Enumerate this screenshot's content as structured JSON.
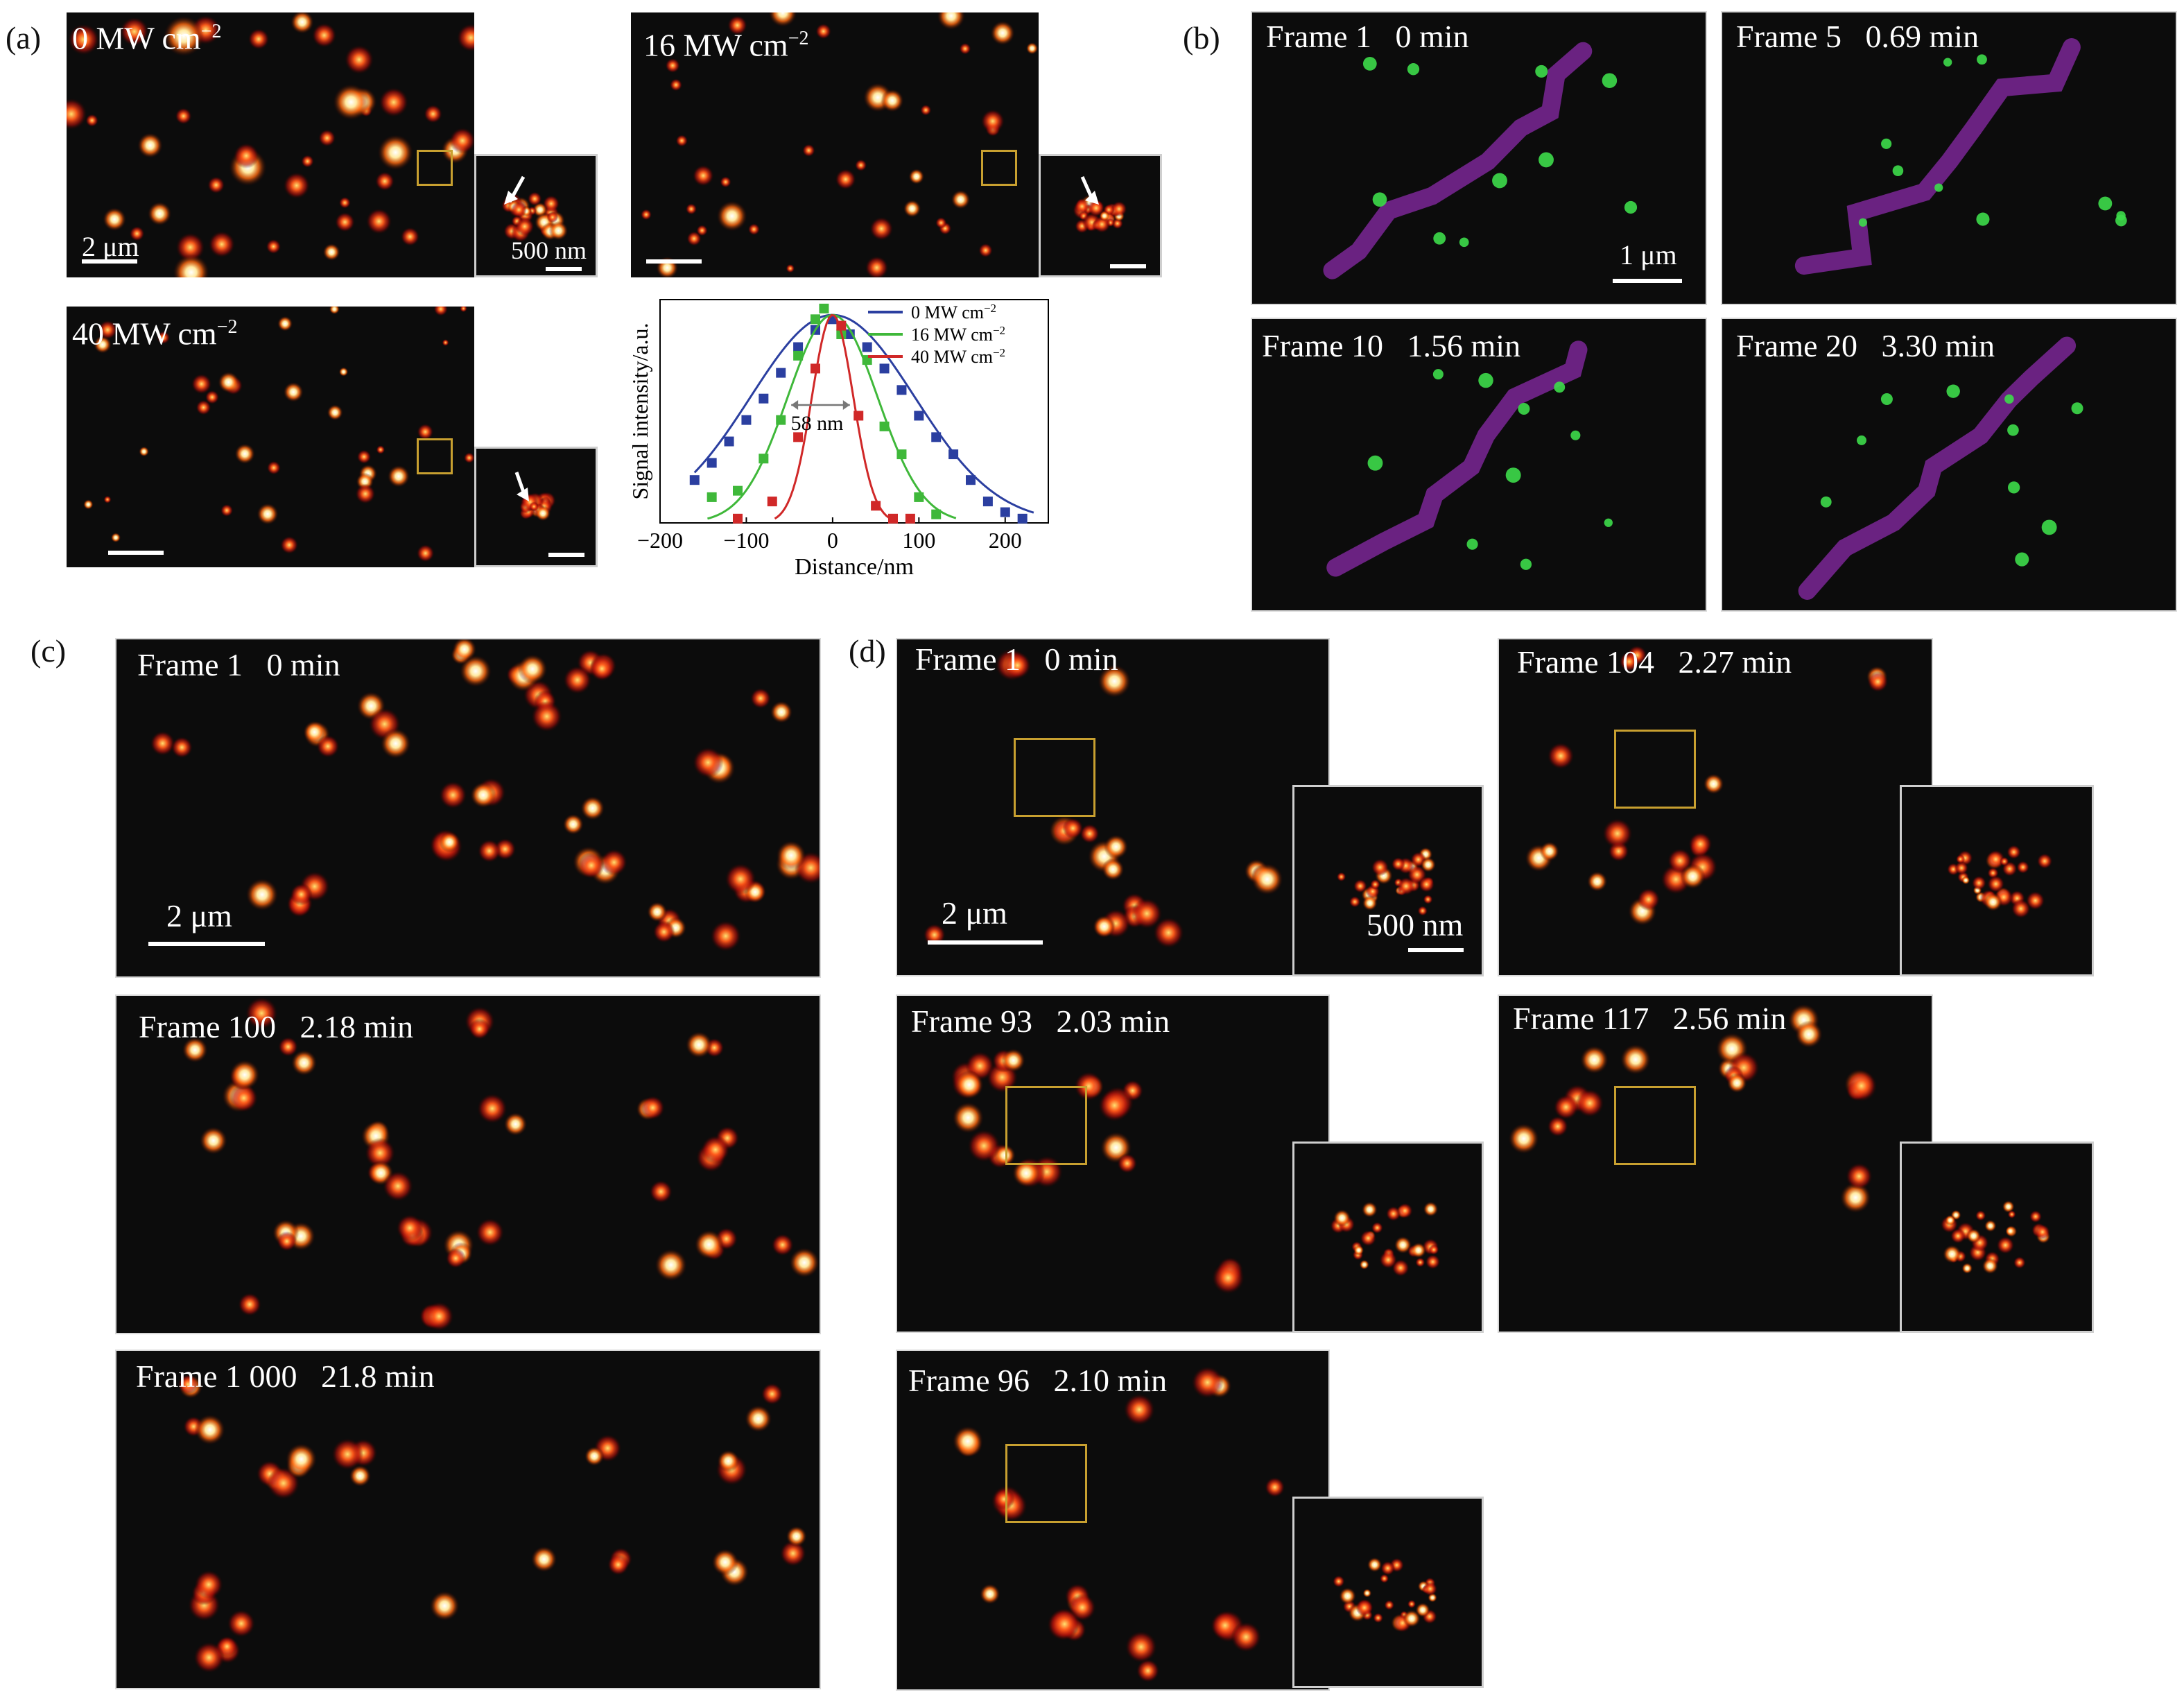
{
  "panels": {
    "a": {
      "letter": "(a)",
      "images": [
        {
          "label": "0 MW cm",
          "sup": "−2",
          "scale": "2 μm",
          "inset_scale": "500 nm"
        },
        {
          "label": "16 MW cm",
          "sup": "−2"
        },
        {
          "label": "40 MW cm",
          "sup": "−2"
        }
      ],
      "annotation": "58 nm"
    },
    "b": {
      "letter": "(b)",
      "frames": [
        {
          "label": "Frame 1   0 min",
          "scale": "1 μm"
        },
        {
          "label": "Frame 5   0.69 min"
        },
        {
          "label": "Frame 10   1.56 min"
        },
        {
          "label": "Frame 20   3.30 min"
        }
      ],
      "colors": {
        "magenta": "#8a2aa8",
        "green": "#3ddb4a"
      }
    },
    "c": {
      "letter": "(c)",
      "frames": [
        {
          "label": "Frame 1   0 min",
          "scale": "2 μm"
        },
        {
          "label": "Frame 100   2.18 min"
        },
        {
          "label": "Frame 1 000   21.8 min"
        }
      ]
    },
    "d": {
      "letter": "(d)",
      "frames": [
        {
          "label": "Frame 1   0 min",
          "scale": "2 μm",
          "inset_scale": "500 nm"
        },
        {
          "label": "Frame 104   2.27 min"
        },
        {
          "label": "Frame 93   2.03 min"
        },
        {
          "label": "Frame 117   2.56 min"
        },
        {
          "label": "Frame 96   2.10 min"
        }
      ],
      "roi_color": "#c8a030"
    }
  },
  "chart_data": {
    "type": "line",
    "xlabel": "Distance/nm",
    "ylabel": "Signal intensity/a.u.",
    "xlim": [
      -200,
      250
    ],
    "xticks": [
      -200,
      -100,
      0,
      100,
      200
    ],
    "grid": false,
    "legend_position": "top-right",
    "series": [
      {
        "name": "0 MW cm−2",
        "color": "#2b3fa0",
        "points": [
          [
            -160,
            0.2
          ],
          [
            -140,
            0.28
          ],
          [
            -120,
            0.38
          ],
          [
            -100,
            0.48
          ],
          [
            -80,
            0.58
          ],
          [
            -60,
            0.7
          ],
          [
            -40,
            0.82
          ],
          [
            -20,
            0.9
          ],
          [
            0,
            0.95
          ],
          [
            20,
            0.88
          ],
          [
            40,
            0.82
          ],
          [
            60,
            0.72
          ],
          [
            80,
            0.62
          ],
          [
            100,
            0.5
          ],
          [
            120,
            0.4
          ],
          [
            140,
            0.32
          ],
          [
            160,
            0.2
          ],
          [
            180,
            0.1
          ],
          [
            200,
            0.05
          ],
          [
            220,
            0.02
          ]
        ],
        "fit_sigma": 95
      },
      {
        "name": "16 MW cm−2",
        "color": "#3fb83a",
        "points": [
          [
            -140,
            0.12
          ],
          [
            -110,
            0.15
          ],
          [
            -80,
            0.3
          ],
          [
            -60,
            0.48
          ],
          [
            -40,
            0.78
          ],
          [
            -20,
            0.95
          ],
          [
            -10,
            1.0
          ],
          [
            10,
            0.88
          ],
          [
            40,
            0.76
          ],
          [
            60,
            0.45
          ],
          [
            80,
            0.32
          ],
          [
            100,
            0.12
          ],
          [
            120,
            0.04
          ]
        ],
        "fit_sigma": 52
      },
      {
        "name": "40 MW cm−2",
        "color": "#d02828",
        "points": [
          [
            -110,
            0.02
          ],
          [
            -70,
            0.1
          ],
          [
            -40,
            0.4
          ],
          [
            -20,
            0.72
          ],
          [
            10,
            0.92
          ],
          [
            30,
            0.5
          ],
          [
            50,
            0.08
          ],
          [
            70,
            0.02
          ],
          [
            90,
            0.02
          ]
        ],
        "fit_sigma": 24
      }
    ]
  }
}
